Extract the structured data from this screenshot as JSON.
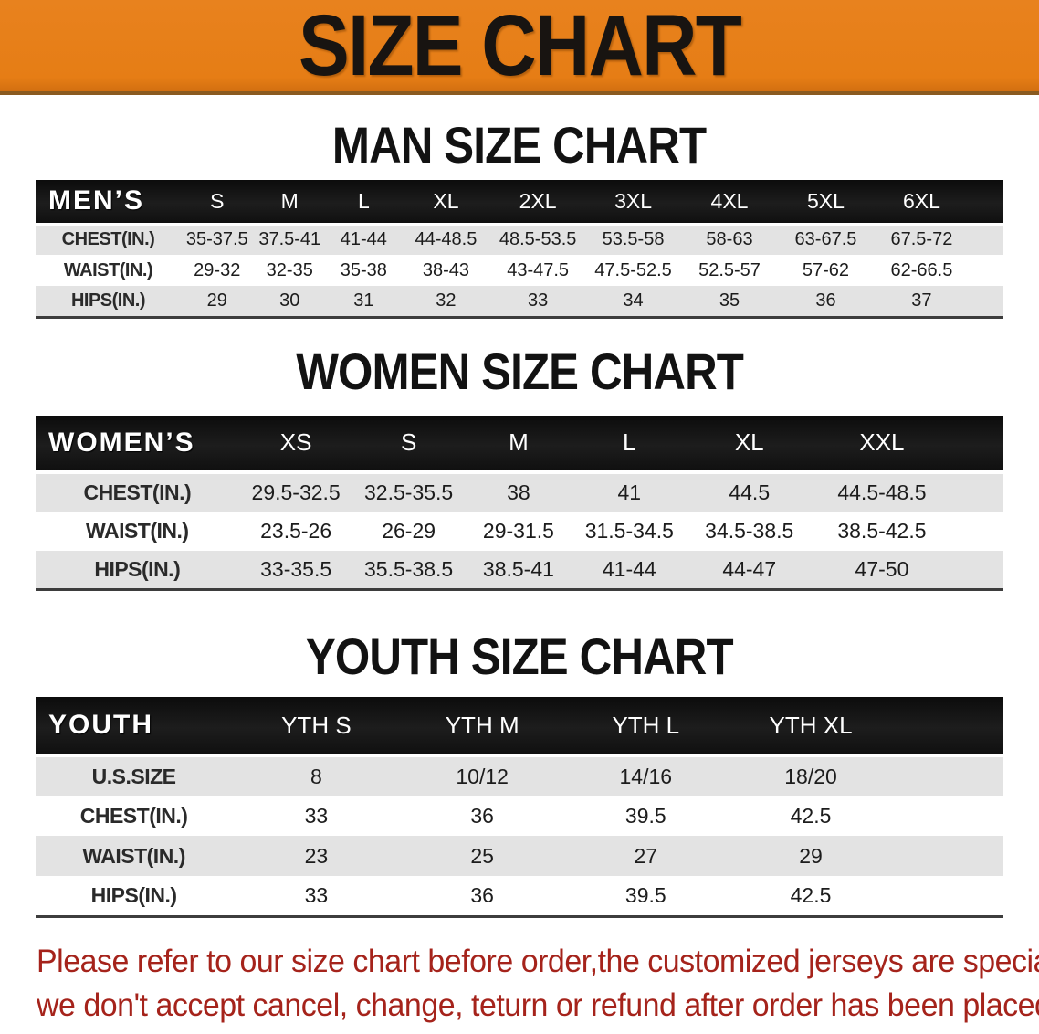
{
  "colors": {
    "banner_orange": "#E8821E",
    "note_red": "#A5231B",
    "table_header_black": "#161616",
    "row_gray": "#E3E3E3"
  },
  "banner": {
    "title": "SIZE CHART"
  },
  "sections": {
    "men": {
      "heading": "MAN SIZE CHART"
    },
    "women": {
      "heading": "WOMEN SIZE CHART"
    },
    "youth": {
      "heading": "YOUTH SIZE CHART"
    }
  },
  "tables": {
    "men": {
      "header": [
        "MEN’S",
        "S",
        "M",
        "L",
        "XL",
        "2XL",
        "3XL",
        "4XL",
        "5XL",
        "6XL"
      ],
      "rows": [
        [
          "CHEST(IN.)",
          "35-37.5",
          "37.5-41",
          "41-44",
          "44-48.5",
          "48.5-53.5",
          "53.5-58",
          "58-63",
          "63-67.5",
          "67.5-72"
        ],
        [
          "WAIST(IN.)",
          "29-32",
          "32-35",
          "35-38",
          "38-43",
          "43-47.5",
          "47.5-52.5",
          "52.5-57",
          "57-62",
          "62-66.5"
        ],
        [
          "HIPS(IN.)",
          "29",
          "30",
          "31",
          "32",
          "33",
          "34",
          "35",
          "36",
          "37"
        ]
      ]
    },
    "women": {
      "header": [
        "WOMEN’S",
        "XS",
        "S",
        "M",
        "L",
        "XL",
        "XXL"
      ],
      "rows": [
        [
          "CHEST(IN.)",
          "29.5-32.5",
          "32.5-35.5",
          "38",
          "41",
          "44.5",
          "44.5-48.5"
        ],
        [
          "WAIST(IN.)",
          "23.5-26",
          "26-29",
          "29-31.5",
          "31.5-34.5",
          "34.5-38.5",
          "38.5-42.5"
        ],
        [
          "HIPS(IN.)",
          "33-35.5",
          "35.5-38.5",
          "38.5-41",
          "41-44",
          "44-47",
          "47-50"
        ]
      ]
    },
    "youth": {
      "header": [
        "YOUTH",
        "YTH S",
        "YTH M",
        "YTH L",
        "YTH XL"
      ],
      "rows": [
        [
          "U.S.SIZE",
          "8",
          "10/12",
          "14/16",
          "18/20"
        ],
        [
          "CHEST(IN.)",
          "33",
          "36",
          "39.5",
          "42.5"
        ],
        [
          "WAIST(IN.)",
          "23",
          "25",
          "27",
          "29"
        ],
        [
          "HIPS(IN.)",
          "33",
          "36",
          "39.5",
          "42.5"
        ]
      ]
    }
  },
  "footer": {
    "line1": "Please refer to our size chart before order,the customized jerseys are special products,",
    "line2": "we don't accept cancel, change, teturn or refund after order has been placed!"
  }
}
